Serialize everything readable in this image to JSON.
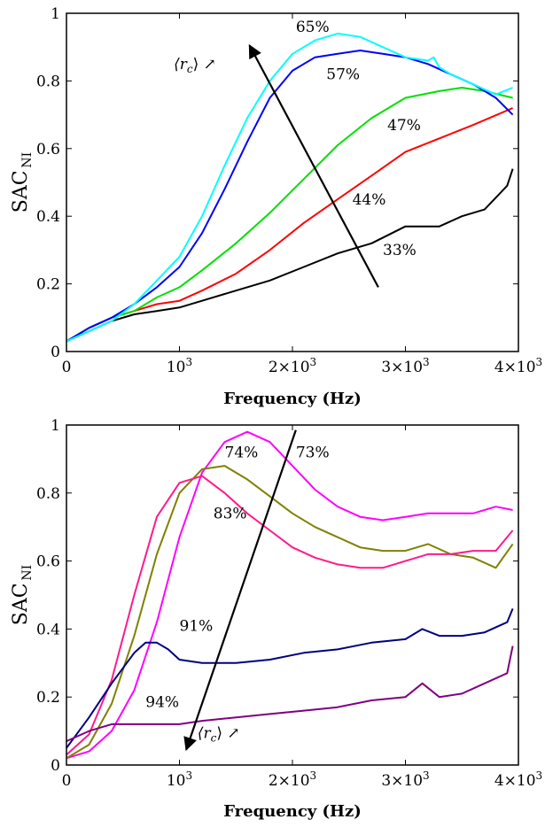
{
  "chart_data": [
    {
      "type": "line",
      "xlabel": "Frequency (Hz)",
      "ylabel": "SAC",
      "ylabel_sub": "NI",
      "xlim": [
        0,
        4000
      ],
      "ylim": [
        0,
        1
      ],
      "xticks": [
        {
          "v": 0,
          "base": "0",
          "exp": ""
        },
        {
          "v": 1000,
          "base": "10",
          "exp": "3"
        },
        {
          "v": 2000,
          "base": "2×10",
          "exp": "3"
        },
        {
          "v": 3000,
          "base": "3×10",
          "exp": "3"
        },
        {
          "v": 4000,
          "base": "4×10",
          "exp": "3"
        }
      ],
      "yticks": [
        {
          "v": 0,
          "label": "0"
        },
        {
          "v": 0.2,
          "label": "0.2"
        },
        {
          "v": 0.4,
          "label": "0.4"
        },
        {
          "v": 0.6,
          "label": "0.6"
        },
        {
          "v": 0.8,
          "label": "0.8"
        },
        {
          "v": 1,
          "label": "1"
        }
      ],
      "series": [
        {
          "name": "33%",
          "color": "#000000",
          "x": [
            0,
            200,
            400,
            600,
            800,
            1000,
            1200,
            1500,
            1800,
            2100,
            2400,
            2700,
            3000,
            3200,
            3300,
            3500,
            3700,
            3900,
            3950
          ],
          "y": [
            0.03,
            0.06,
            0.09,
            0.11,
            0.12,
            0.13,
            0.15,
            0.18,
            0.21,
            0.25,
            0.29,
            0.32,
            0.37,
            0.37,
            0.37,
            0.4,
            0.42,
            0.49,
            0.54
          ]
        },
        {
          "name": "44%",
          "color": "#ff0000",
          "x": [
            0,
            200,
            400,
            600,
            800,
            1000,
            1200,
            1500,
            1800,
            2100,
            2400,
            2700,
            3000,
            3300,
            3600,
            3950
          ],
          "y": [
            0.03,
            0.07,
            0.1,
            0.12,
            0.14,
            0.15,
            0.18,
            0.23,
            0.3,
            0.38,
            0.45,
            0.52,
            0.59,
            0.63,
            0.67,
            0.72
          ]
        },
        {
          "name": "47%",
          "color": "#00e000",
          "x": [
            0,
            200,
            400,
            600,
            800,
            1000,
            1200,
            1500,
            1800,
            2100,
            2400,
            2700,
            3000,
            3300,
            3500,
            3700,
            3950
          ],
          "y": [
            0.03,
            0.07,
            0.1,
            0.12,
            0.16,
            0.19,
            0.24,
            0.32,
            0.41,
            0.51,
            0.61,
            0.69,
            0.75,
            0.77,
            0.78,
            0.77,
            0.75
          ]
        },
        {
          "name": "57%",
          "color": "#0000ff",
          "x": [
            0,
            200,
            400,
            600,
            800,
            1000,
            1200,
            1400,
            1600,
            1800,
            2000,
            2200,
            2400,
            2600,
            2800,
            3000,
            3200,
            3400,
            3600,
            3800,
            3950
          ],
          "y": [
            0.03,
            0.07,
            0.1,
            0.14,
            0.19,
            0.25,
            0.35,
            0.48,
            0.62,
            0.75,
            0.83,
            0.87,
            0.88,
            0.89,
            0.88,
            0.87,
            0.85,
            0.82,
            0.79,
            0.75,
            0.7
          ]
        },
        {
          "name": "65%",
          "color": "#00ffff",
          "x": [
            0,
            200,
            400,
            600,
            800,
            1000,
            1200,
            1400,
            1600,
            1800,
            2000,
            2200,
            2400,
            2600,
            2800,
            3000,
            3200,
            3250,
            3300,
            3400,
            3600,
            3800,
            3950
          ],
          "y": [
            0.03,
            0.06,
            0.09,
            0.14,
            0.21,
            0.28,
            0.4,
            0.55,
            0.69,
            0.8,
            0.88,
            0.92,
            0.94,
            0.93,
            0.9,
            0.87,
            0.86,
            0.87,
            0.84,
            0.82,
            0.79,
            0.76,
            0.78
          ]
        }
      ],
      "annotations": [
        {
          "text": "65%",
          "x": 2030,
          "y": 0.945
        },
        {
          "text": "57%",
          "x": 2300,
          "y": 0.805
        },
        {
          "text": "47%",
          "x": 2840,
          "y": 0.655
        },
        {
          "text": "44%",
          "x": 2530,
          "y": 0.435
        },
        {
          "text": "33%",
          "x": 2800,
          "y": 0.285
        }
      ],
      "arrow": {
        "x1": 2760,
        "y1": 0.19,
        "x2": 1620,
        "y2": 0.905
      },
      "arrow_label": {
        "text": "⟨r",
        "sub": "c",
        "close": "⟩ ↗",
        "x": 950,
        "y": 0.835
      }
    },
    {
      "type": "line",
      "xlabel": "Frequency (Hz)",
      "ylabel": "SAC",
      "ylabel_sub": "NI",
      "xlim": [
        0,
        4000
      ],
      "ylim": [
        0,
        1
      ],
      "xticks": [
        {
          "v": 0,
          "base": "0",
          "exp": ""
        },
        {
          "v": 1000,
          "base": "10",
          "exp": "3"
        },
        {
          "v": 2000,
          "base": "2×10",
          "exp": "3"
        },
        {
          "v": 3000,
          "base": "3×10",
          "exp": "3"
        },
        {
          "v": 4000,
          "base": "4×10",
          "exp": "3"
        }
      ],
      "yticks": [
        {
          "v": 0,
          "label": "0"
        },
        {
          "v": 0.2,
          "label": "0.2"
        },
        {
          "v": 0.4,
          "label": "0.4"
        },
        {
          "v": 0.6,
          "label": "0.6"
        },
        {
          "v": 0.8,
          "label": "0.8"
        },
        {
          "v": 1,
          "label": "1"
        }
      ],
      "series": [
        {
          "name": "73%",
          "color": "#ff00ff",
          "x": [
            0,
            200,
            400,
            600,
            800,
            1000,
            1200,
            1400,
            1600,
            1800,
            2000,
            2200,
            2400,
            2600,
            2800,
            3000,
            3200,
            3400,
            3600,
            3800,
            3950
          ],
          "y": [
            0.02,
            0.04,
            0.1,
            0.22,
            0.42,
            0.67,
            0.86,
            0.95,
            0.98,
            0.95,
            0.88,
            0.81,
            0.76,
            0.73,
            0.72,
            0.73,
            0.74,
            0.74,
            0.74,
            0.76,
            0.75
          ]
        },
        {
          "name": "74%",
          "color": "#808000",
          "x": [
            0,
            200,
            400,
            600,
            800,
            1000,
            1200,
            1400,
            1600,
            1800,
            2000,
            2200,
            2400,
            2600,
            2800,
            3000,
            3200,
            3400,
            3600,
            3800,
            3950
          ],
          "y": [
            0.02,
            0.06,
            0.18,
            0.38,
            0.62,
            0.8,
            0.87,
            0.88,
            0.84,
            0.79,
            0.74,
            0.7,
            0.67,
            0.64,
            0.63,
            0.63,
            0.65,
            0.62,
            0.61,
            0.58,
            0.65
          ]
        },
        {
          "name": "83%",
          "color": "#ff1a8c",
          "x": [
            0,
            200,
            400,
            600,
            800,
            1000,
            1200,
            1400,
            1600,
            1800,
            2000,
            2200,
            2400,
            2600,
            2800,
            3000,
            3200,
            3400,
            3600,
            3800,
            3950
          ],
          "y": [
            0.03,
            0.09,
            0.25,
            0.5,
            0.73,
            0.83,
            0.85,
            0.8,
            0.74,
            0.69,
            0.64,
            0.61,
            0.59,
            0.58,
            0.58,
            0.6,
            0.62,
            0.62,
            0.63,
            0.63,
            0.69
          ]
        },
        {
          "name": "91%",
          "color": "#000080",
          "x": [
            0,
            200,
            400,
            600,
            700,
            800,
            900,
            1000,
            1200,
            1500,
            1800,
            2100,
            2400,
            2700,
            3000,
            3150,
            3300,
            3500,
            3700,
            3900,
            3950
          ],
          "y": [
            0.05,
            0.14,
            0.24,
            0.33,
            0.36,
            0.36,
            0.34,
            0.31,
            0.3,
            0.3,
            0.31,
            0.33,
            0.34,
            0.36,
            0.37,
            0.4,
            0.38,
            0.38,
            0.39,
            0.42,
            0.46
          ]
        },
        {
          "name": "94%",
          "color": "#800080",
          "x": [
            0,
            200,
            400,
            600,
            800,
            1000,
            1200,
            1500,
            1800,
            2100,
            2400,
            2700,
            3000,
            3150,
            3300,
            3500,
            3700,
            3900,
            3950
          ],
          "y": [
            0.07,
            0.1,
            0.12,
            0.12,
            0.12,
            0.12,
            0.13,
            0.14,
            0.15,
            0.16,
            0.17,
            0.19,
            0.2,
            0.24,
            0.2,
            0.21,
            0.24,
            0.27,
            0.35
          ]
        }
      ],
      "annotations": [
        {
          "text": "74%",
          "x": 1400,
          "y": 0.905
        },
        {
          "text": "73%",
          "x": 2030,
          "y": 0.905
        },
        {
          "text": "83%",
          "x": 1300,
          "y": 0.725
        },
        {
          "text": "91%",
          "x": 1000,
          "y": 0.395
        },
        {
          "text": "94%",
          "x": 700,
          "y": 0.17
        }
      ],
      "arrow": {
        "x1": 2030,
        "y1": 0.985,
        "x2": 1060,
        "y2": 0.045
      },
      "arrow_label": {
        "text": "⟨r",
        "sub": "c",
        "close": "⟩ ↗",
        "x": 1160,
        "y": 0.08
      }
    }
  ]
}
